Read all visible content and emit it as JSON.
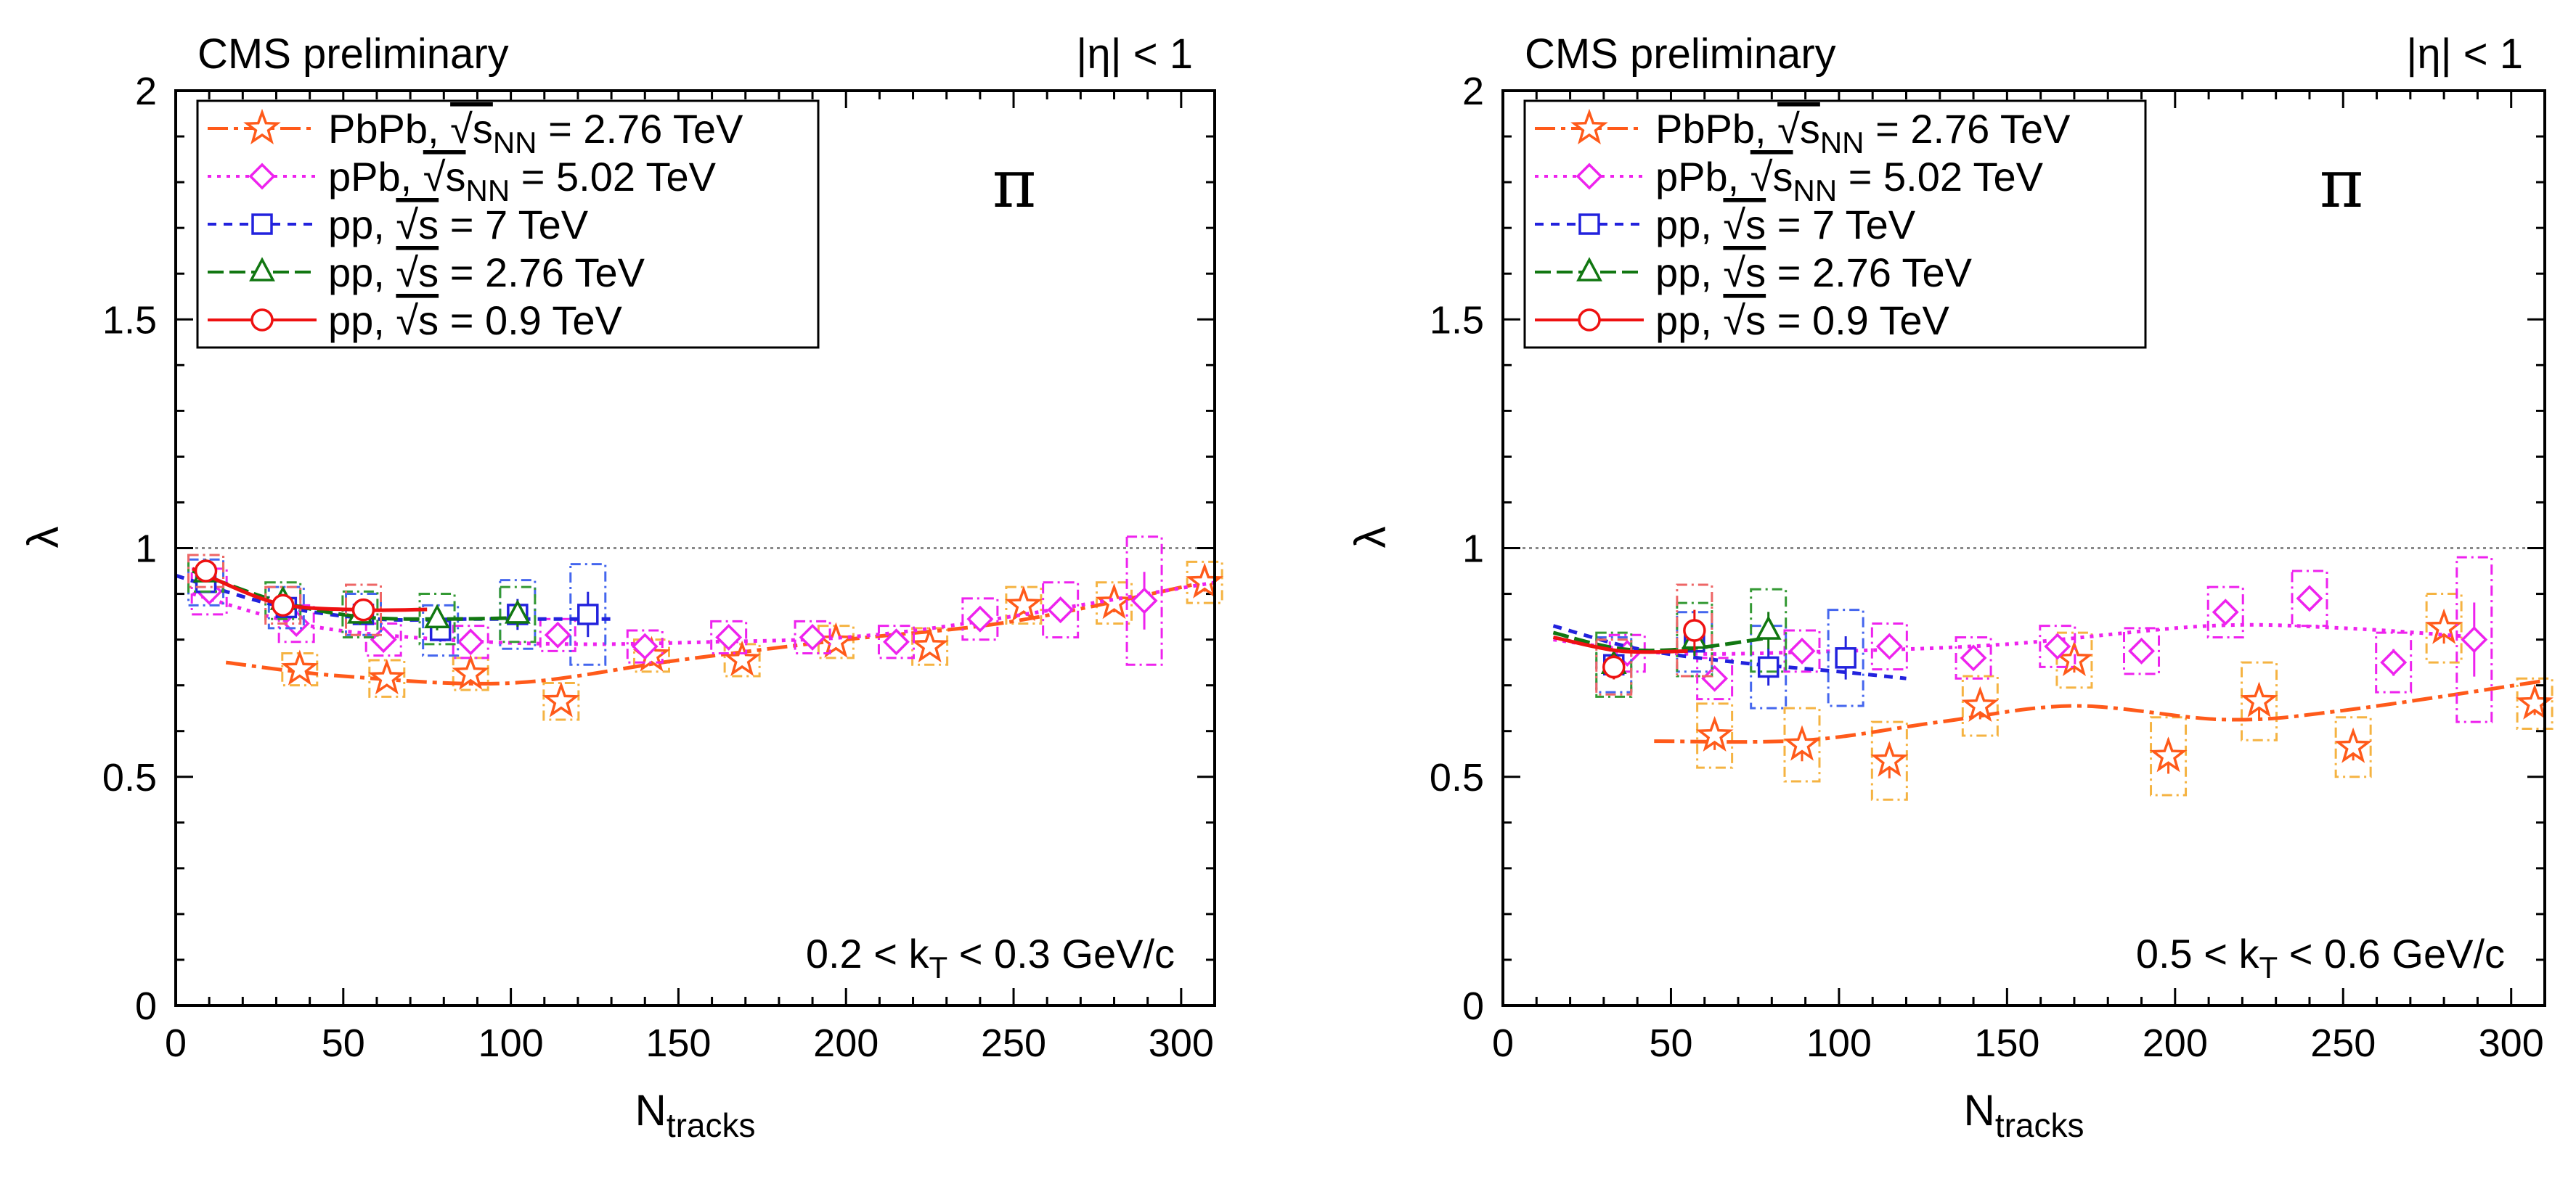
{
  "chart_data": [
    {
      "type": "scatter",
      "panel": "left",
      "title": "CMS preliminary",
      "region_label": "|η| < 1",
      "particle": "π",
      "kt_label": {
        "pre": "0.2 < k",
        "sub": "T",
        "post": " < 0.3 GeV/c"
      },
      "xlabel": {
        "main": "N",
        "sub": "tracks"
      },
      "ylabel": "λ",
      "xlim": [
        0,
        310
      ],
      "ylim": [
        0,
        2
      ],
      "xticks": [
        "0",
        "50",
        "100",
        "150",
        "200",
        "250",
        "300"
      ],
      "yticks": [
        "0",
        "0.5",
        "1",
        "1.5",
        "2"
      ],
      "reference_line": 1,
      "series": [
        {
          "name": "PbPb",
          "color": "#ff5a1a",
          "box_color": "#f5b342",
          "marker": "star",
          "dash": "28 8 6 8",
          "legend": {
            "pre": "PbPb, ",
            "sqrt": "√s",
            "sub": "NN",
            "post": " = 2.76 TeV"
          },
          "x": [
            37,
            63,
            88,
            115,
            142,
            169,
            197,
            225,
            253,
            280,
            307
          ],
          "y": [
            0.735,
            0.715,
            0.725,
            0.665,
            0.765,
            0.755,
            0.795,
            0.785,
            0.875,
            0.88,
            0.925
          ],
          "box": [
            0.035,
            0.04,
            0.035,
            0.04,
            0.035,
            0.035,
            0.035,
            0.04,
            0.04,
            0.045,
            0.045
          ],
          "fit": [
            [
              15,
              0.75
            ],
            [
              50,
              0.72
            ],
            [
              100,
              0.705
            ],
            [
              150,
              0.755
            ],
            [
              200,
              0.8
            ],
            [
              250,
              0.84
            ],
            [
              310,
              0.93
            ]
          ]
        },
        {
          "name": "pPb",
          "color": "#ee22ee",
          "box_color": "#ee22ee",
          "marker": "diamond",
          "dash": "5 8",
          "legend": {
            "pre": "pPb, ",
            "sqrt": "√s",
            "sub": "NN",
            "post": " = 5.02 TeV"
          },
          "x": [
            10,
            36,
            62,
            88,
            114,
            140,
            165,
            190,
            215,
            240,
            264,
            289
          ],
          "y": [
            0.905,
            0.835,
            0.8,
            0.795,
            0.81,
            0.785,
            0.805,
            0.805,
            0.795,
            0.845,
            0.865,
            0.885
          ],
          "box": [
            0.05,
            0.04,
            0.035,
            0.035,
            0.035,
            0.035,
            0.035,
            0.035,
            0.035,
            0.045,
            0.06,
            0.14
          ],
          "fit": [
            [
              5,
              0.9
            ],
            [
              40,
              0.83
            ],
            [
              80,
              0.8
            ],
            [
              120,
              0.79
            ],
            [
              160,
              0.795
            ],
            [
              200,
              0.805
            ],
            [
              240,
              0.84
            ],
            [
              310,
              0.925
            ]
          ]
        },
        {
          "name": "pp 7 TeV",
          "color": "#2222dd",
          "box_color": "#4466ee",
          "marker": "square",
          "dash": "12 10",
          "legend": {
            "pre": "pp, ",
            "sqrt": "√s",
            "sub": "",
            "post": " = 7 TeV"
          },
          "x": [
            9,
            33,
            56,
            79,
            102,
            123
          ],
          "y": [
            0.925,
            0.87,
            0.855,
            0.82,
            0.855,
            0.855
          ],
          "box": [
            0.05,
            0.045,
            0.045,
            0.055,
            0.075,
            0.11
          ],
          "fit": [
            [
              0,
              0.94
            ],
            [
              30,
              0.875
            ],
            [
              60,
              0.845
            ],
            [
              90,
              0.845
            ],
            [
              130,
              0.845
            ]
          ]
        },
        {
          "name": "pp 2.76 TeV",
          "color": "#117711",
          "box_color": "#339933",
          "marker": "triangle",
          "dash": "22 8",
          "legend": {
            "pre": "pp, ",
            "sqrt": "√s",
            "sub": "",
            "post": " = 2.76 TeV"
          },
          "x": [
            9,
            32,
            55,
            78,
            102
          ],
          "y": [
            0.945,
            0.885,
            0.855,
            0.845,
            0.855
          ],
          "box": [
            0.04,
            0.04,
            0.05,
            0.055,
            0.06
          ],
          "fit": [
            [
              5,
              0.95
            ],
            [
              30,
              0.885
            ],
            [
              55,
              0.85
            ],
            [
              80,
              0.845
            ],
            [
              105,
              0.848
            ]
          ]
        },
        {
          "name": "pp 0.9 TeV",
          "color": "#ee1111",
          "box_color": "#ee6666",
          "marker": "circle",
          "dash": "",
          "legend": {
            "pre": "pp, ",
            "sqrt": "√s",
            "sub": "",
            "post": " = 0.9 TeV"
          },
          "x": [
            9,
            32,
            56
          ],
          "y": [
            0.95,
            0.875,
            0.865
          ],
          "box": [
            0.035,
            0.04,
            0.055
          ],
          "fit": [
            [
              5,
              0.955
            ],
            [
              30,
              0.88
            ],
            [
              55,
              0.865
            ],
            [
              75,
              0.866
            ]
          ]
        }
      ]
    },
    {
      "type": "scatter",
      "panel": "right",
      "title": "CMS preliminary",
      "region_label": "|η| < 1",
      "particle": "π",
      "kt_label": {
        "pre": "0.5 < k",
        "sub": "T",
        "post": " < 0.6 GeV/c"
      },
      "xlabel": {
        "main": "N",
        "sub": "tracks"
      },
      "ylabel": "λ",
      "xlim": [
        0,
        310
      ],
      "ylim": [
        0,
        2
      ],
      "xticks": [
        "0",
        "50",
        "100",
        "150",
        "200",
        "250",
        "300"
      ],
      "yticks": [
        "0",
        "0.5",
        "1",
        "1.5",
        "2"
      ],
      "reference_line": 1,
      "series": [
        {
          "name": "PbPb",
          "color": "#ff5a1a",
          "box_color": "#f5b342",
          "marker": "star",
          "dash": "28 8 6 8",
          "legend": {
            "pre": "PbPb, ",
            "sqrt": "√s",
            "sub": "NN",
            "post": " = 2.76 TeV"
          },
          "x": [
            63,
            89,
            115,
            142,
            170,
            198,
            225,
            253,
            280,
            307
          ],
          "y": [
            0.59,
            0.57,
            0.535,
            0.655,
            0.755,
            0.545,
            0.665,
            0.565,
            0.825,
            0.66
          ],
          "box": [
            0.07,
            0.08,
            0.085,
            0.065,
            0.06,
            0.085,
            0.085,
            0.065,
            0.075,
            0.055
          ],
          "fit": [
            [
              45,
              0.578
            ],
            [
              90,
              0.58
            ],
            [
              130,
              0.62
            ],
            [
              170,
              0.655
            ],
            [
              215,
              0.625
            ],
            [
              250,
              0.645
            ],
            [
              310,
              0.71
            ]
          ]
        },
        {
          "name": "pPb",
          "color": "#ee22ee",
          "box_color": "#ee22ee",
          "marker": "diamond",
          "dash": "5 8",
          "legend": {
            "pre": "pPb, ",
            "sqrt": "√s",
            "sub": "NN",
            "post": " = 5.02 TeV"
          },
          "x": [
            37,
            63,
            89,
            115,
            140,
            165,
            190,
            215,
            240,
            265,
            289
          ],
          "y": [
            0.77,
            0.715,
            0.775,
            0.785,
            0.76,
            0.785,
            0.775,
            0.86,
            0.89,
            0.75,
            0.8
          ],
          "box": [
            0.04,
            0.045,
            0.045,
            0.05,
            0.045,
            0.045,
            0.05,
            0.055,
            0.06,
            0.065,
            0.18
          ],
          "fit": [
            [
              15,
              0.8
            ],
            [
              50,
              0.77
            ],
            [
              100,
              0.775
            ],
            [
              150,
              0.79
            ],
            [
              210,
              0.83
            ],
            [
              250,
              0.825
            ],
            [
              290,
              0.805
            ]
          ]
        },
        {
          "name": "pp 7 TeV",
          "color": "#2222dd",
          "box_color": "#4466ee",
          "marker": "square",
          "dash": "12 10",
          "legend": {
            "pre": "pp, ",
            "sqrt": "√s",
            "sub": "",
            "post": " = 7 TeV"
          },
          "x": [
            33,
            57,
            79,
            102
          ],
          "y": [
            0.745,
            0.795,
            0.74,
            0.76
          ],
          "box": [
            0.06,
            0.065,
            0.09,
            0.105
          ],
          "fit": [
            [
              15,
              0.83
            ],
            [
              40,
              0.78
            ],
            [
              70,
              0.75
            ],
            [
              100,
              0.73
            ],
            [
              120,
              0.715
            ]
          ]
        },
        {
          "name": "pp 2.76 TeV",
          "color": "#117711",
          "box_color": "#339933",
          "marker": "triangle",
          "dash": "22 8",
          "legend": {
            "pre": "pp, ",
            "sqrt": "√s",
            "sub": "",
            "post": " = 2.76 TeV"
          },
          "x": [
            33,
            57,
            79
          ],
          "y": [
            0.745,
            0.8,
            0.82
          ],
          "box": [
            0.07,
            0.08,
            0.09
          ],
          "fit": [
            [
              15,
              0.815
            ],
            [
              35,
              0.78
            ],
            [
              55,
              0.78
            ],
            [
              80,
              0.805
            ]
          ]
        },
        {
          "name": "pp 0.9 TeV",
          "color": "#ee1111",
          "box_color": "#ee6666",
          "marker": "circle",
          "dash": "",
          "legend": {
            "pre": "pp, ",
            "sqrt": "√s",
            "sub": "",
            "post": " = 0.9 TeV"
          },
          "x": [
            33,
            57
          ],
          "y": [
            0.74,
            0.82
          ],
          "box": [
            0.06,
            0.1
          ],
          "fit": [
            [
              15,
              0.805
            ],
            [
              35,
              0.775
            ],
            [
              55,
              0.775
            ]
          ]
        }
      ]
    }
  ]
}
